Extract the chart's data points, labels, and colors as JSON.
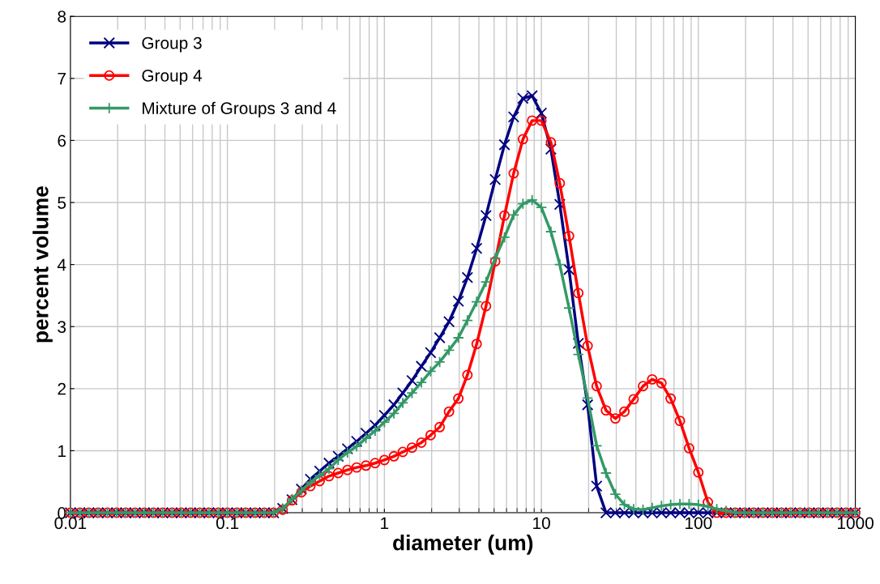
{
  "chart_data": {
    "type": "line",
    "xlabel": "diameter (um)",
    "ylabel": "percent volume",
    "log": "x",
    "xlim": [
      0.01,
      1000
    ],
    "ylim": [
      0,
      8
    ],
    "xticks": [
      0.01,
      0.1,
      1,
      10,
      100,
      1000
    ],
    "yticks": [
      0,
      1,
      2,
      3,
      4,
      5,
      6,
      7,
      8
    ],
    "grid": true,
    "legend": "top left",
    "line_style": "solid",
    "x": [
      0.01,
      0.0115,
      0.0131,
      0.015,
      0.0172,
      0.0197,
      0.0225,
      0.0258,
      0.0296,
      0.0338,
      0.0387,
      0.0444,
      0.0508,
      0.0582,
      0.0666,
      0.0763,
      0.0873,
      0.1,
      0.115,
      0.131,
      0.15,
      0.172,
      0.197,
      0.225,
      0.258,
      0.296,
      0.338,
      0.387,
      0.444,
      0.508,
      0.582,
      0.666,
      0.763,
      0.873,
      1,
      1.15,
      1.31,
      1.5,
      1.72,
      1.97,
      2.25,
      2.58,
      2.96,
      3.38,
      3.87,
      4.44,
      5.08,
      5.82,
      6.66,
      7.63,
      8.73,
      10,
      11.5,
      13.1,
      15,
      17.2,
      19.7,
      22.5,
      25.8,
      29.6,
      33.8,
      38.7,
      44.4,
      50.8,
      58.2,
      66.6,
      76.3,
      87.3,
      100,
      115,
      131,
      150,
      172,
      197,
      225,
      258,
      296,
      338,
      387,
      444,
      508,
      582,
      666,
      763,
      873,
      1000
    ],
    "series": [
      {
        "name": "Group 3",
        "color": "#000080",
        "marker": "cross",
        "values": [
          0,
          0,
          0,
          0,
          0,
          0,
          0,
          0,
          0,
          0,
          0,
          0,
          0,
          0,
          0,
          0,
          0,
          0,
          0,
          0,
          0,
          0,
          0,
          0.07,
          0.21,
          0.38,
          0.54,
          0.67,
          0.8,
          0.91,
          1.03,
          1.15,
          1.28,
          1.41,
          1.57,
          1.74,
          1.93,
          2.13,
          2.36,
          2.58,
          2.82,
          3.08,
          3.41,
          3.79,
          4.26,
          4.79,
          5.37,
          5.93,
          6.38,
          6.68,
          6.72,
          6.44,
          5.86,
          4.97,
          3.92,
          2.73,
          1.74,
          0.43,
          0,
          0,
          0,
          0,
          0,
          0,
          0,
          0,
          0,
          0,
          0,
          0,
          0,
          0,
          0,
          0,
          0,
          0,
          0,
          0,
          0,
          0,
          0,
          0,
          0,
          0,
          0,
          0
        ]
      },
      {
        "name": "Group 4",
        "color": "#ff0000",
        "marker": "circle",
        "values": [
          0,
          0,
          0,
          0,
          0,
          0,
          0,
          0,
          0,
          0,
          0,
          0,
          0,
          0,
          0,
          0,
          0,
          0,
          0,
          0,
          0,
          0,
          0,
          0.05,
          0.2,
          0.33,
          0.43,
          0.51,
          0.59,
          0.64,
          0.69,
          0.73,
          0.76,
          0.8,
          0.85,
          0.91,
          0.98,
          1.05,
          1.13,
          1.25,
          1.38,
          1.63,
          1.84,
          2.22,
          2.72,
          3.33,
          4.05,
          4.79,
          5.47,
          6.02,
          6.32,
          6.32,
          5.97,
          5.31,
          4.46,
          3.54,
          2.69,
          2.04,
          1.65,
          1.52,
          1.63,
          1.83,
          2.04,
          2.15,
          2.09,
          1.84,
          1.48,
          1.04,
          0.65,
          0.17,
          0,
          0,
          0,
          0,
          0,
          0,
          0,
          0,
          0,
          0,
          0,
          0,
          0,
          0,
          0,
          0
        ]
      },
      {
        "name": "Mixture of Groups 3 and 4",
        "color": "#339966",
        "marker": "plus",
        "values": [
          0,
          0,
          0,
          0,
          0,
          0,
          0,
          0,
          0,
          0,
          0,
          0,
          0,
          0,
          0,
          0,
          0,
          0,
          0,
          0,
          0,
          0,
          0,
          0.07,
          0.22,
          0.36,
          0.49,
          0.6,
          0.71,
          0.85,
          0.97,
          1.07,
          1.2,
          1.32,
          1.46,
          1.6,
          1.77,
          1.93,
          2.1,
          2.28,
          2.43,
          2.62,
          2.82,
          3.1,
          3.4,
          3.72,
          4.1,
          4.44,
          4.8,
          4.98,
          5.04,
          4.92,
          4.53,
          4.0,
          3.3,
          2.55,
          1.85,
          1.08,
          0.64,
          0.3,
          0.13,
          0.06,
          0.05,
          0.08,
          0.11,
          0.13,
          0.14,
          0.14,
          0.13,
          0.1,
          0.06,
          0.03,
          0,
          0,
          0,
          0,
          0,
          0,
          0,
          0,
          0,
          0,
          0,
          0,
          0,
          0
        ]
      }
    ]
  }
}
